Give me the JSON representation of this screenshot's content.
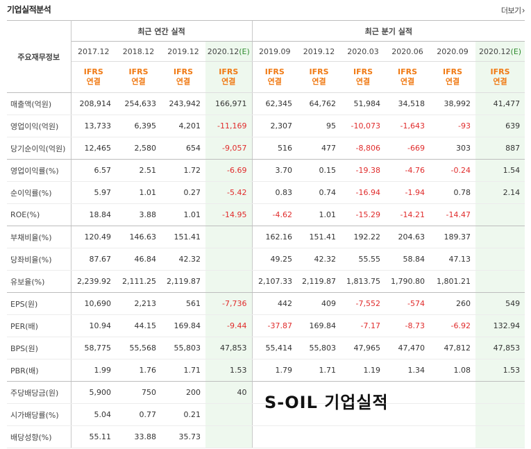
{
  "page": {
    "title": "기업실적분석",
    "more_label": "더보기",
    "overlay_text": "S-OIL 기업실적"
  },
  "header": {
    "row_label": "주요재무정보",
    "annual_group": "최근 연간 실적",
    "quarter_group": "최근 분기 실적",
    "annual_periods": [
      "2017.12",
      "2018.12",
      "2019.12",
      "2020.12"
    ],
    "annual_estimate_mark": "(E)",
    "quarter_periods": [
      "2019.09",
      "2019.12",
      "2020.03",
      "2020.06",
      "2020.09",
      "2020.12"
    ],
    "quarter_estimate_mark": "(E)",
    "standard_line1": "IFRS",
    "standard_line2": "연결"
  },
  "rows": [
    {
      "label": "매출액(억원)",
      "values": [
        "208,914",
        "254,633",
        "243,942",
        "166,971",
        "62,345",
        "64,762",
        "51,984",
        "34,518",
        "38,992",
        "41,477"
      ]
    },
    {
      "label": "영업이익(억원)",
      "values": [
        "13,733",
        "6,395",
        "4,201",
        "-11,169",
        "2,307",
        "95",
        "-10,073",
        "-1,643",
        "-93",
        "639"
      ]
    },
    {
      "label": "당기순이익(억원)",
      "values": [
        "12,465",
        "2,580",
        "654",
        "-9,057",
        "516",
        "477",
        "-8,806",
        "-669",
        "303",
        "887"
      ]
    },
    {
      "label": "영업이익률(%)",
      "values": [
        "6.57",
        "2.51",
        "1.72",
        "-6.69",
        "3.70",
        "0.15",
        "-19.38",
        "-4.76",
        "-0.24",
        "1.54"
      ]
    },
    {
      "label": "순이익률(%)",
      "values": [
        "5.97",
        "1.01",
        "0.27",
        "-5.42",
        "0.83",
        "0.74",
        "-16.94",
        "-1.94",
        "0.78",
        "2.14"
      ]
    },
    {
      "label": "ROE(%)",
      "values": [
        "18.84",
        "3.88",
        "1.01",
        "-14.95",
        "-4.62",
        "1.01",
        "-15.29",
        "-14.21",
        "-14.47",
        ""
      ]
    },
    {
      "label": "부채비율(%)",
      "values": [
        "120.49",
        "146.63",
        "151.41",
        "",
        "162.16",
        "151.41",
        "192.22",
        "204.63",
        "189.37",
        ""
      ]
    },
    {
      "label": "당좌비율(%)",
      "values": [
        "87.67",
        "46.84",
        "42.32",
        "",
        "49.25",
        "42.32",
        "55.55",
        "58.84",
        "47.13",
        ""
      ]
    },
    {
      "label": "유보율(%)",
      "values": [
        "2,239.92",
        "2,111.25",
        "2,119.87",
        "",
        "2,107.33",
        "2,119.87",
        "1,813.75",
        "1,790.80",
        "1,801.21",
        ""
      ]
    },
    {
      "label": "EPS(원)",
      "values": [
        "10,690",
        "2,213",
        "561",
        "-7,736",
        "442",
        "409",
        "-7,552",
        "-574",
        "260",
        "549"
      ]
    },
    {
      "label": "PER(배)",
      "values": [
        "10.94",
        "44.15",
        "169.84",
        "-9.44",
        "-37.87",
        "169.84",
        "-7.17",
        "-8.73",
        "-6.92",
        "132.94"
      ]
    },
    {
      "label": "BPS(원)",
      "values": [
        "58,775",
        "55,568",
        "55,803",
        "47,853",
        "55,414",
        "55,803",
        "47,965",
        "47,470",
        "47,812",
        "47,853"
      ]
    },
    {
      "label": "PBR(배)",
      "values": [
        "1.99",
        "1.76",
        "1.71",
        "1.53",
        "1.79",
        "1.71",
        "1.19",
        "1.34",
        "1.08",
        "1.53"
      ]
    },
    {
      "label": "주당배당금(원)",
      "values": [
        "5,900",
        "750",
        "200",
        "40",
        "",
        "",
        "",
        "",
        "",
        ""
      ]
    },
    {
      "label": "시가배당률(%)",
      "values": [
        "5.04",
        "0.77",
        "0.21",
        "",
        "",
        "",
        "",
        "",
        "",
        ""
      ]
    },
    {
      "label": "배당성향(%)",
      "values": [
        "55.11",
        "33.88",
        "35.73",
        "",
        "",
        "",
        "",
        "",
        "",
        ""
      ]
    }
  ],
  "colors": {
    "negative": "#e02b2b",
    "ifrs": "#f07a14",
    "estimate_bg": "#eef8ee",
    "estimate_mark": "#2e8b2e"
  }
}
